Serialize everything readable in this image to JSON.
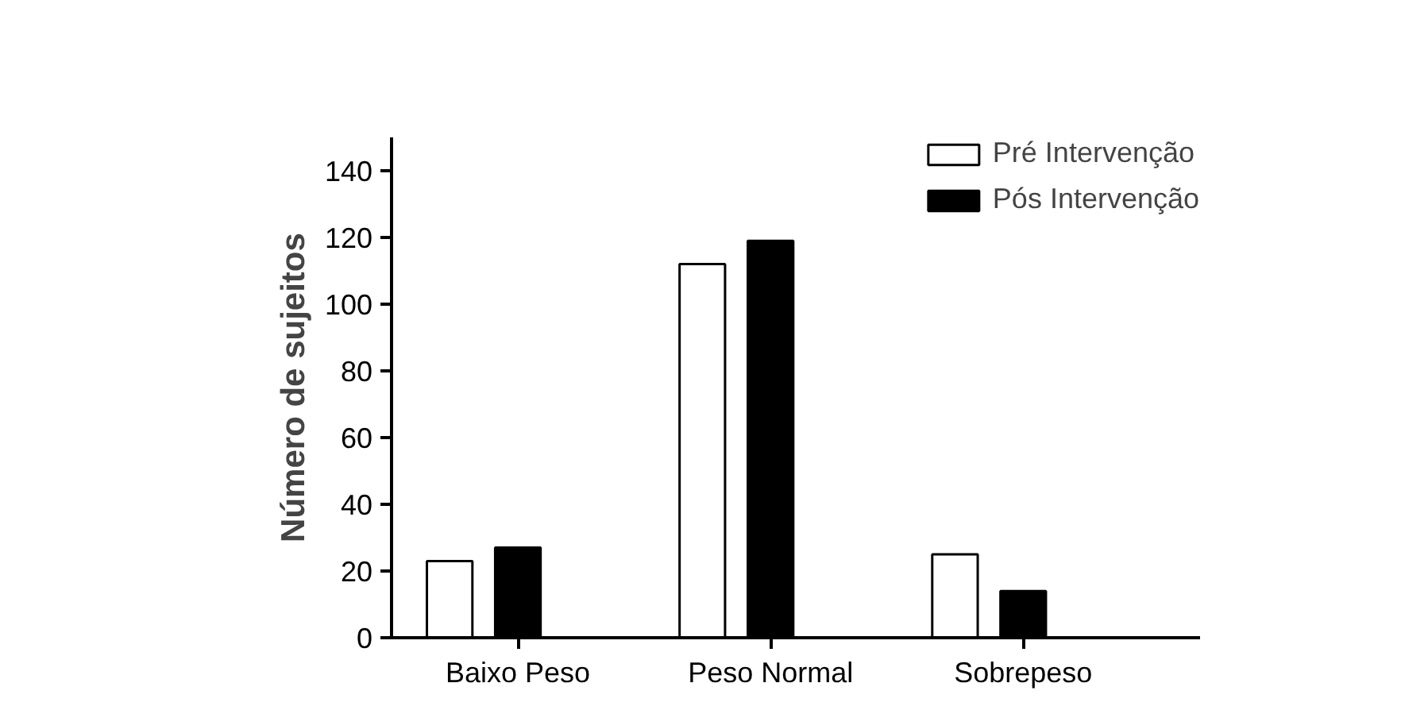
{
  "chart_data": {
    "type": "bar",
    "ylabel": "Número de sujeitos",
    "categories": [
      "Baixo Peso",
      "Peso Normal",
      "Sobrepeso"
    ],
    "series": [
      {
        "name": "Pré Intervenção",
        "color": "#ffffff",
        "values": [
          23,
          112,
          25
        ]
      },
      {
        "name": "Pós Intervenção",
        "color": "#000000",
        "values": [
          27,
          119,
          14
        ]
      }
    ],
    "ylim": [
      0,
      150
    ],
    "yticks": [
      0,
      20,
      40,
      60,
      80,
      100,
      120,
      140
    ],
    "grid": false,
    "legend": "top right"
  }
}
